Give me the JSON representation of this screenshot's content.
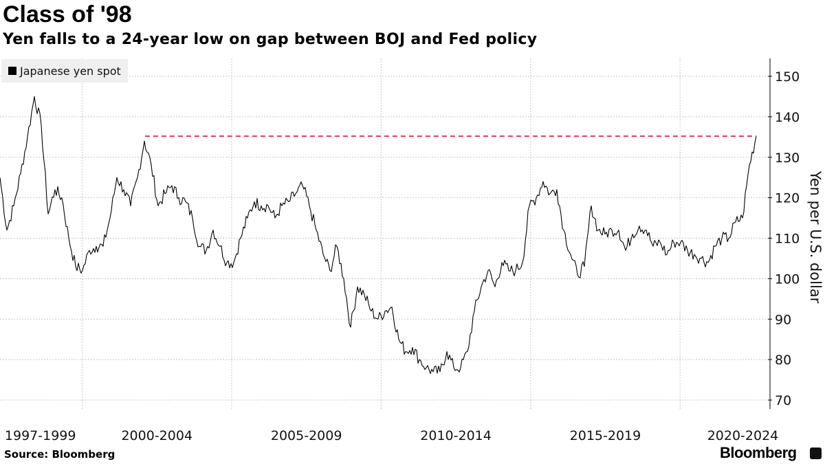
{
  "chart_data": {
    "type": "line",
    "title": "Class of '98",
    "subtitle": "Yen falls to a 24-year low on gap between BOJ and Fed policy",
    "legend": [
      "Japanese yen spot"
    ],
    "legend_placement": "top-left",
    "ylabel": "Yen per U.S. dollar",
    "ylim": [
      70,
      155
    ],
    "yticks": [
      70,
      80,
      90,
      100,
      110,
      120,
      130,
      140,
      150
    ],
    "xlim": [
      1997.25,
      2023.0
    ],
    "xgrid_years": [
      2000,
      2005,
      2010,
      2015,
      2020
    ],
    "xtick_labels": [
      {
        "label": "1997-1999",
        "center": 1998.6
      },
      {
        "label": "2000-2004",
        "center": 2002.5
      },
      {
        "label": "2005-2009",
        "center": 2007.5
      },
      {
        "label": "2010-2014",
        "center": 2012.5
      },
      {
        "label": "2015-2019",
        "center": 2017.5
      },
      {
        "label": "2020-2024",
        "center": 2022.1
      }
    ],
    "grid": true,
    "series": [
      {
        "name": "Japanese yen spot",
        "color": "#000000",
        "x_start": 1997.25,
        "x_step": 0.23,
        "values": [
          125,
          112,
          118,
          126,
          135,
          145,
          138,
          116,
          122,
          120,
          110,
          103,
          102,
          107,
          108,
          108,
          115,
          125,
          122,
          118,
          125,
          134,
          128,
          118,
          121,
          123,
          120,
          119,
          115,
          108,
          107,
          112,
          108,
          104,
          104,
          110,
          115,
          119,
          118,
          118,
          115,
          118,
          119,
          121,
          123,
          118,
          112,
          106,
          102,
          108,
          100,
          88,
          98,
          96,
          92,
          90,
          92,
          93,
          85,
          82,
          83,
          80,
          78,
          77,
          77,
          82,
          78,
          78,
          82,
          92,
          98,
          102,
          98,
          104,
          102,
          102,
          104,
          118,
          120,
          124,
          121,
          122,
          112,
          106,
          101,
          103,
          118,
          112,
          111,
          112,
          112,
          107,
          111,
          113,
          112,
          108,
          109,
          106,
          109,
          109,
          107,
          106,
          105,
          104,
          108,
          110,
          110,
          114,
          115,
          128,
          135.2
        ]
      }
    ],
    "reference_line": {
      "value": 135.2,
      "from": 2002.1,
      "color": "#e8364f",
      "style": "dashed"
    }
  },
  "footer": {
    "source": "Source: Bloomberg",
    "brand": "Bloomberg"
  }
}
